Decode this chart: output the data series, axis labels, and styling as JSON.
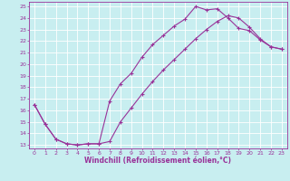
{
  "xlabel": "Windchill (Refroidissement éolien,°C)",
  "bg_color": "#c8eef0",
  "line_color": "#993399",
  "xlim_min": -0.5,
  "xlim_max": 23.5,
  "ylim_min": 12.7,
  "ylim_max": 25.4,
  "xticks": [
    0,
    1,
    2,
    3,
    4,
    5,
    6,
    7,
    8,
    9,
    10,
    11,
    12,
    13,
    14,
    15,
    16,
    17,
    18,
    19,
    20,
    21,
    22,
    23
  ],
  "yticks": [
    13,
    14,
    15,
    16,
    17,
    18,
    19,
    20,
    21,
    22,
    23,
    24,
    25
  ],
  "line1_x": [
    0,
    1,
    2,
    3,
    4,
    5,
    6,
    7,
    8,
    9,
    10,
    11,
    12,
    13,
    14,
    15,
    16,
    17,
    18,
    19,
    20,
    21,
    22,
    23
  ],
  "line1_y": [
    16.5,
    14.8,
    13.5,
    13.1,
    13.0,
    13.1,
    13.1,
    16.8,
    18.3,
    19.2,
    20.6,
    21.7,
    22.5,
    23.3,
    23.9,
    25.0,
    24.7,
    24.8,
    24.0,
    23.1,
    22.9,
    22.1,
    21.5,
    21.3
  ],
  "line2_x": [
    0,
    1,
    2,
    3,
    4,
    5,
    6,
    7,
    8,
    9,
    10,
    11,
    12,
    13,
    14,
    15,
    16,
    17,
    18,
    19,
    20,
    21,
    22,
    23
  ],
  "line2_y": [
    16.5,
    14.8,
    13.5,
    13.1,
    13.0,
    13.1,
    13.1,
    13.3,
    15.0,
    16.2,
    17.4,
    18.5,
    19.5,
    20.4,
    21.3,
    22.2,
    23.0,
    23.7,
    24.2,
    24.0,
    23.2,
    22.2,
    21.5,
    21.3
  ],
  "xlabel_fontsize": 5.5,
  "tick_fontsize": 4.5,
  "linewidth": 0.8,
  "markersize": 2.5
}
